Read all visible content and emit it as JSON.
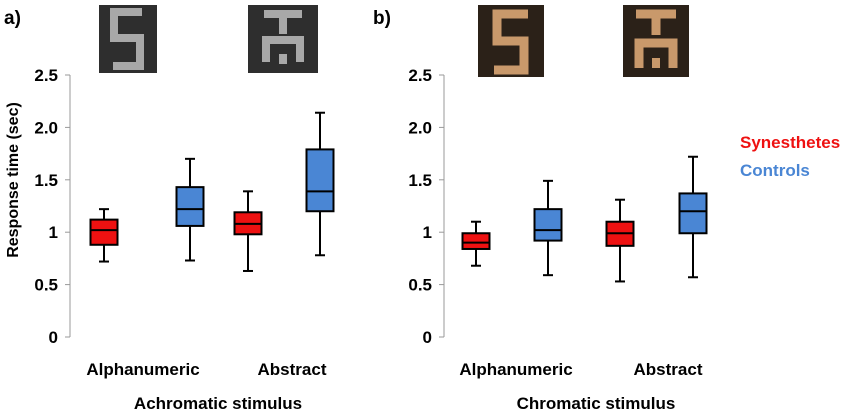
{
  "colors": {
    "synesthetes": "#ee1111",
    "controls": "#4a86d4",
    "achromatic_bg": "#2e2e2e",
    "achromatic_glyph": "#a8a8a8",
    "chromatic_bg": "#2b2118",
    "chromatic_glyph": "#c9996b"
  },
  "ylabel": "Response time (sec)",
  "legend": {
    "placement": "right",
    "items": [
      {
        "label": "Synesthetes",
        "color": "#ee1111"
      },
      {
        "label": "Controls",
        "color": "#4a86d4"
      }
    ]
  },
  "chart_data": [
    {
      "type": "boxplot",
      "panel_label": "a)",
      "xlabel": "Achromatic stimulus",
      "ylabel": "Response time (sec)",
      "ylim": [
        0,
        2.5
      ],
      "yticks": [
        "0",
        "0.5",
        "1",
        "1.5",
        "2.0",
        "2.5"
      ],
      "ytick_values": [
        0,
        0.5,
        1,
        1.5,
        2.0,
        2.5
      ],
      "grid": false,
      "categories": [
        "Alphanumeric",
        "Abstract"
      ],
      "series": [
        {
          "name": "Synesthetes",
          "color": "#ee1111",
          "boxes": [
            {
              "min": 0.72,
              "q1": 0.88,
              "median": 1.02,
              "q3": 1.12,
              "max": 1.22
            },
            {
              "min": 0.63,
              "q1": 0.98,
              "median": 1.08,
              "q3": 1.19,
              "max": 1.39
            }
          ]
        },
        {
          "name": "Controls",
          "color": "#4a86d4",
          "boxes": [
            {
              "min": 0.73,
              "q1": 1.06,
              "median": 1.22,
              "q3": 1.43,
              "max": 1.7
            },
            {
              "min": 0.78,
              "q1": 1.2,
              "median": 1.39,
              "q3": 1.79,
              "max": 2.14
            }
          ]
        }
      ]
    },
    {
      "type": "boxplot",
      "panel_label": "b)",
      "xlabel": "Chromatic stimulus",
      "ylabel": "",
      "ylim": [
        0,
        2.5
      ],
      "yticks": [
        "0",
        "0.5",
        "1",
        "1.5",
        "2.0",
        "2.5"
      ],
      "ytick_values": [
        0,
        0.5,
        1,
        1.5,
        2.0,
        2.5
      ],
      "grid": false,
      "categories": [
        "Alphanumeric",
        "Abstract"
      ],
      "series": [
        {
          "name": "Synesthetes",
          "color": "#ee1111",
          "boxes": [
            {
              "min": 0.68,
              "q1": 0.84,
              "median": 0.9,
              "q3": 0.99,
              "max": 1.1
            },
            {
              "min": 0.53,
              "q1": 0.87,
              "median": 0.99,
              "q3": 1.1,
              "max": 1.31
            }
          ]
        },
        {
          "name": "Controls",
          "color": "#4a86d4",
          "boxes": [
            {
              "min": 0.59,
              "q1": 0.92,
              "median": 1.02,
              "q3": 1.22,
              "max": 1.49
            },
            {
              "min": 0.57,
              "q1": 0.99,
              "median": 1.2,
              "q3": 1.37,
              "max": 1.72
            }
          ]
        }
      ]
    }
  ]
}
